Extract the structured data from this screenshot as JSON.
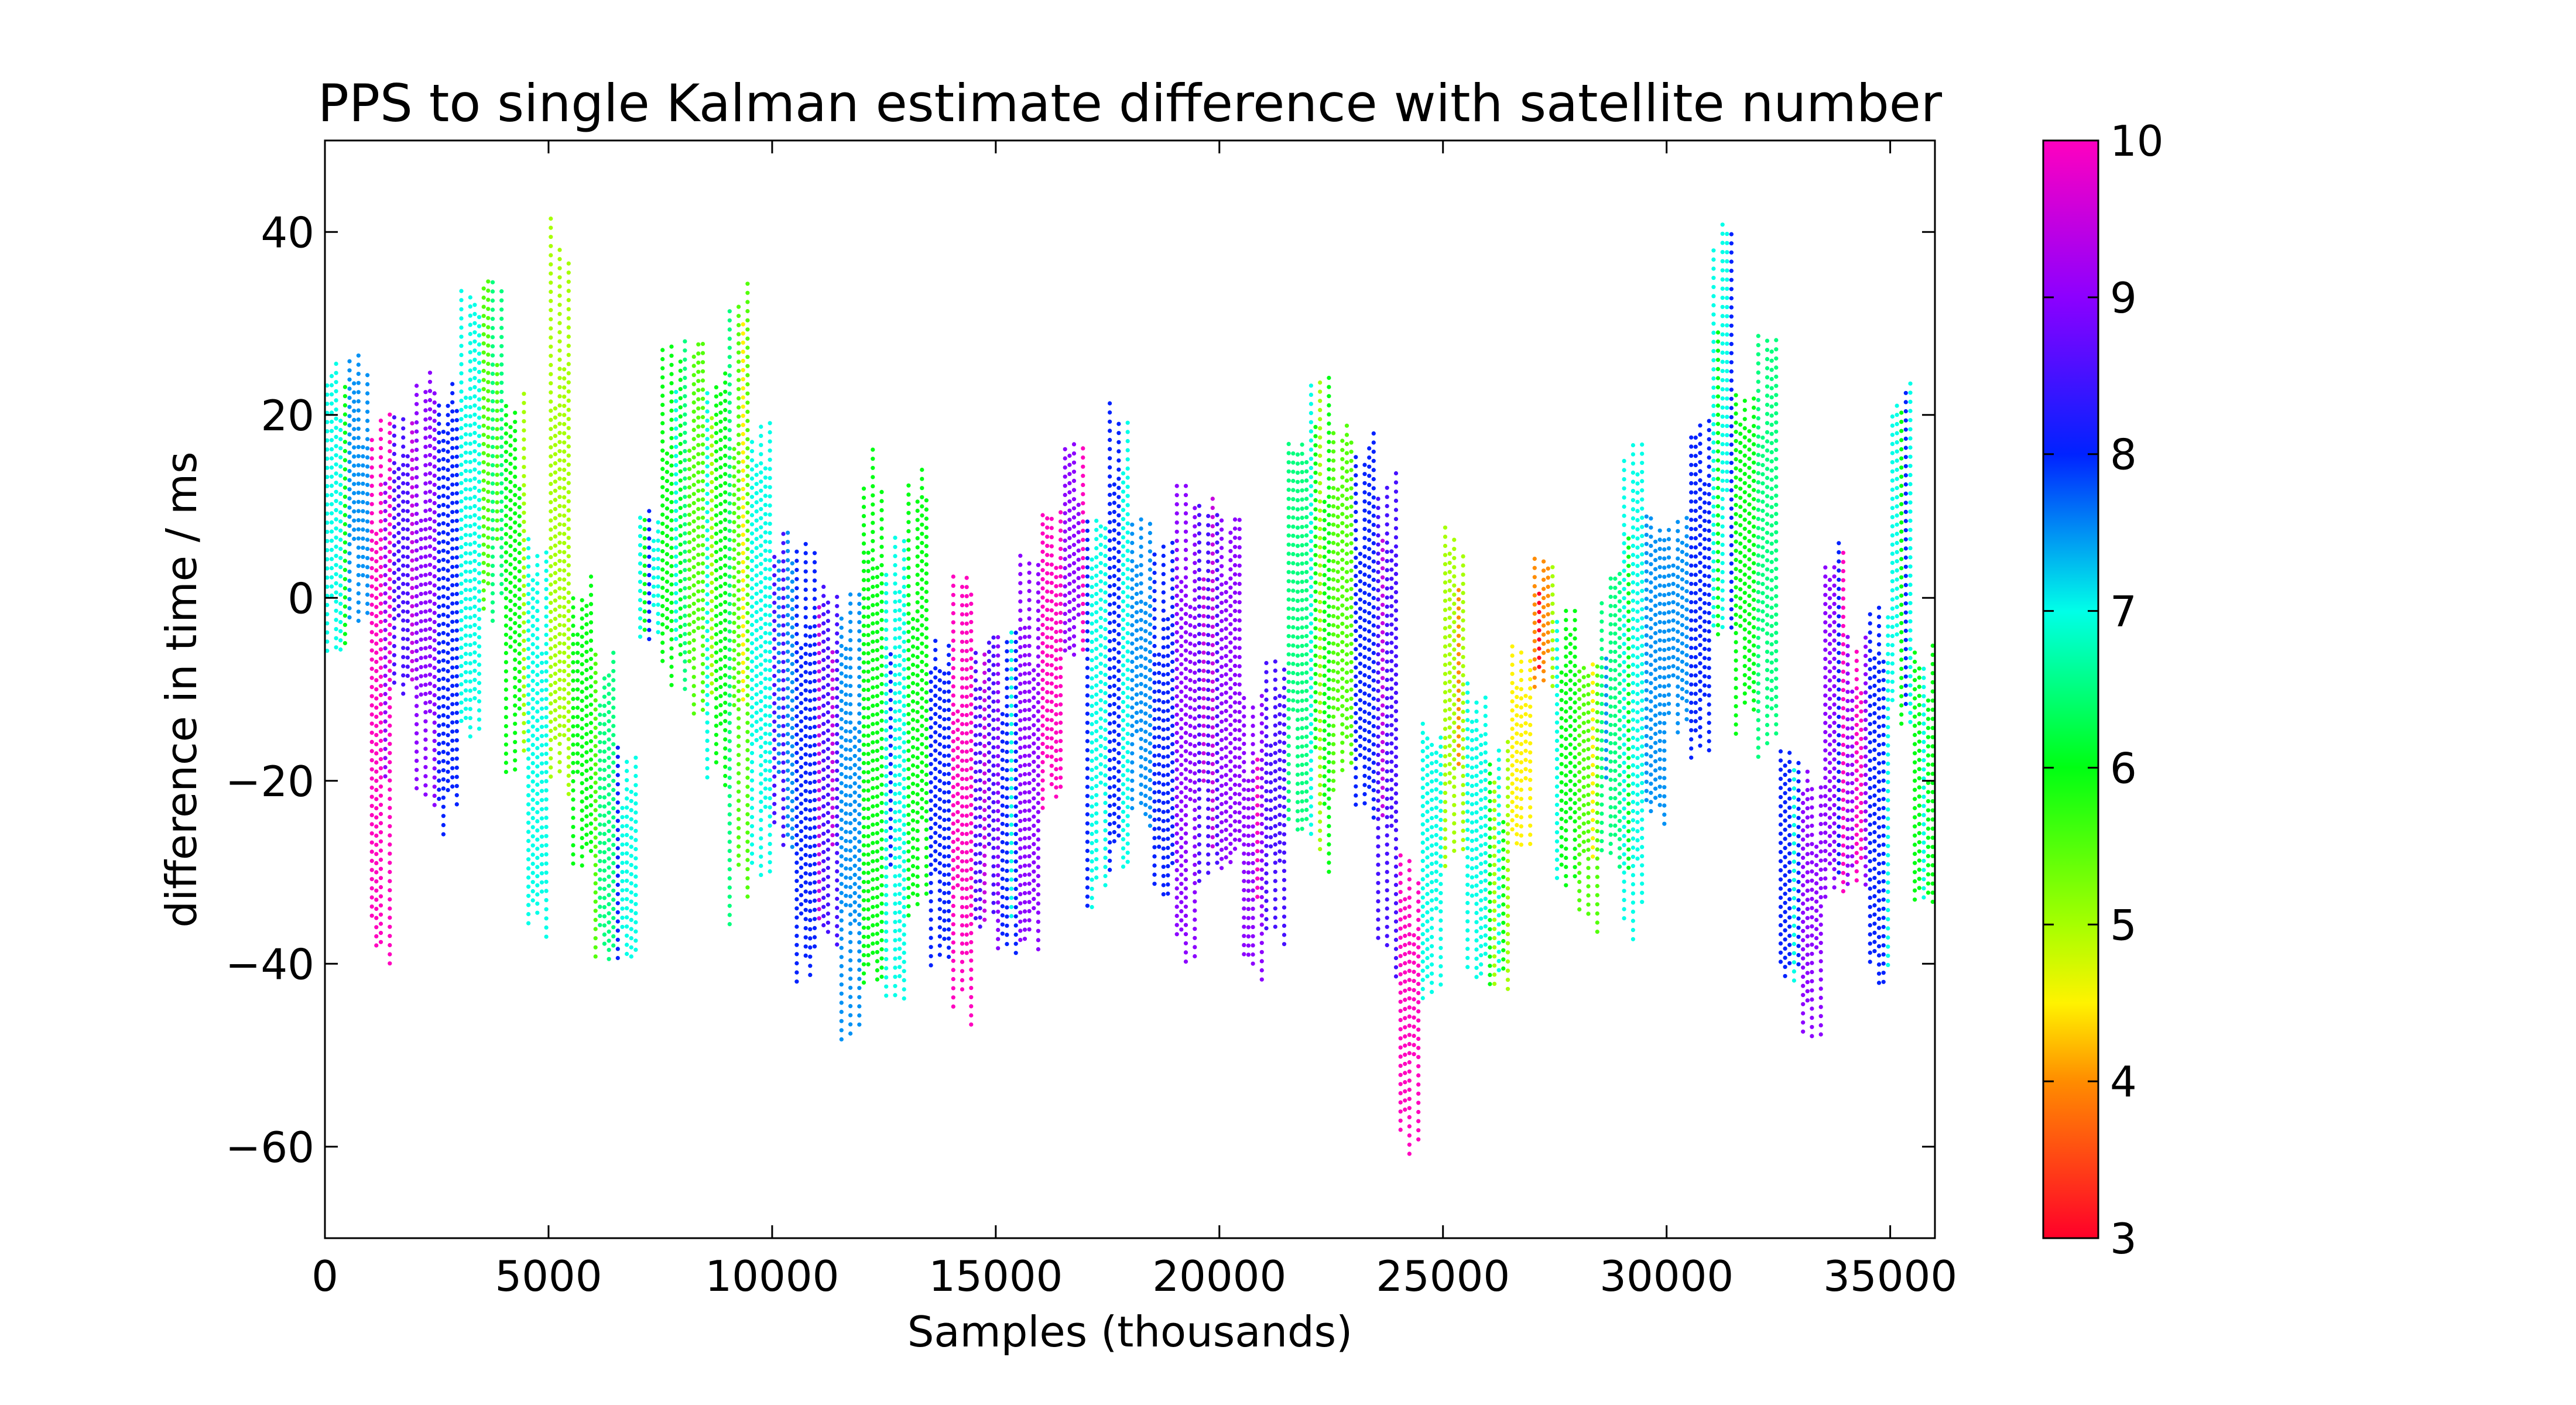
{
  "chart_data": {
    "type": "scatter",
    "title": "PPS to single Kalman estimate difference with satellite number",
    "xlabel": "Samples (thousands)",
    "ylabel": "difference in time / ms",
    "xlim": [
      0,
      36000
    ],
    "ylim": [
      -70,
      50
    ],
    "x_ticks": [
      0,
      5000,
      10000,
      15000,
      20000,
      25000,
      30000,
      35000
    ],
    "x_tick_labels": [
      "0",
      "5000",
      "10000",
      "15000",
      "20000",
      "25000",
      "30000",
      "35000"
    ],
    "y_ticks": [
      -60,
      -40,
      -20,
      0,
      20,
      40
    ],
    "y_tick_labels": [
      "−60",
      "−40",
      "−20",
      "0",
      "20",
      "40"
    ],
    "grid": false,
    "legend": "none",
    "colorbar": {
      "label": "",
      "range": [
        3,
        10
      ],
      "ticks": [
        3,
        4,
        5,
        6,
        7,
        8,
        9,
        10
      ],
      "tick_labels": [
        "3",
        "4",
        "5",
        "6",
        "7",
        "8",
        "9",
        "10"
      ],
      "colormap": "gist_rainbow",
      "stops": [
        {
          "value": 3,
          "color": "#ff0029"
        },
        {
          "value": 4,
          "color": "#ff8c00"
        },
        {
          "value": 4.5,
          "color": "#fff300"
        },
        {
          "value": 5,
          "color": "#a6ff00"
        },
        {
          "value": 6,
          "color": "#00ff13"
        },
        {
          "value": 7,
          "color": "#00ffe8"
        },
        {
          "value": 8,
          "color": "#0022ff"
        },
        {
          "value": 9,
          "color": "#8c00ff"
        },
        {
          "value": 10,
          "color": "#ff00bf"
        }
      ]
    },
    "segments": [
      {
        "x0": 0,
        "x1": 500,
        "sat": 7,
        "lo": -8,
        "hi": 27
      },
      {
        "x0": 500,
        "x1": 1000,
        "sat": 7.5,
        "lo": -3,
        "hi": 28
      },
      {
        "x0": 1000,
        "x1": 1500,
        "sat": 10,
        "lo": -40,
        "hi": 22
      },
      {
        "x0": 1500,
        "x1": 2000,
        "sat": 8.5,
        "lo": -12,
        "hi": 22
      },
      {
        "x0": 2000,
        "x1": 2500,
        "sat": 9,
        "lo": -25,
        "hi": 27
      },
      {
        "x0": 2500,
        "x1": 3000,
        "sat": 8,
        "lo": -26,
        "hi": 24
      },
      {
        "x0": 3000,
        "x1": 3500,
        "sat": 7,
        "lo": -17,
        "hi": 35
      },
      {
        "x0": 3500,
        "x1": 4000,
        "sat": 5.5,
        "lo": -3,
        "hi": 35
      },
      {
        "x0": 4000,
        "x1": 4500,
        "sat": 6,
        "lo": -20,
        "hi": 23
      },
      {
        "x0": 4500,
        "x1": 5000,
        "sat": 7,
        "lo": -39,
        "hi": 10
      },
      {
        "x0": 5000,
        "x1": 5500,
        "sat": 5,
        "lo": -22,
        "hi": 43
      },
      {
        "x0": 5500,
        "x1": 6000,
        "sat": 6,
        "lo": -30,
        "hi": 3
      },
      {
        "x0": 6000,
        "x1": 6500,
        "sat": 6.5,
        "lo": -40,
        "hi": -5
      },
      {
        "x0": 6500,
        "x1": 7000,
        "sat": 7,
        "lo": -41,
        "hi": -15
      },
      {
        "x0": 7000,
        "x1": 7500,
        "sat": 7,
        "lo": -5,
        "hi": 10
      },
      {
        "x0": 7500,
        "x1": 8000,
        "sat": 6,
        "lo": -10,
        "hi": 29
      },
      {
        "x0": 8000,
        "x1": 8500,
        "sat": 5.5,
        "lo": -13,
        "hi": 29
      },
      {
        "x0": 8500,
        "x1": 9000,
        "sat": 6,
        "lo": -22,
        "hi": 27
      },
      {
        "x0": 9000,
        "x1": 9500,
        "sat": 5.5,
        "lo": -36,
        "hi": 38
      },
      {
        "x0": 9500,
        "x1": 10000,
        "sat": 7,
        "lo": -32,
        "hi": 22
      },
      {
        "x0": 10000,
        "x1": 10500,
        "sat": 7.5,
        "lo": -28,
        "hi": 8
      },
      {
        "x0": 10500,
        "x1": 11000,
        "sat": 8,
        "lo": -43,
        "hi": 8
      },
      {
        "x0": 11000,
        "x1": 11500,
        "sat": 8.5,
        "lo": -38,
        "hi": 2
      },
      {
        "x0": 11500,
        "x1": 12000,
        "sat": 7.5,
        "lo": -50,
        "hi": 3
      },
      {
        "x0": 12000,
        "x1": 12500,
        "sat": 6,
        "lo": -44,
        "hi": 18
      },
      {
        "x0": 12500,
        "x1": 13000,
        "sat": 7,
        "lo": -45,
        "hi": 8
      },
      {
        "x0": 13000,
        "x1": 13500,
        "sat": 6,
        "lo": -37,
        "hi": 15
      },
      {
        "x0": 13500,
        "x1": 14000,
        "sat": 8,
        "lo": -42,
        "hi": -4
      },
      {
        "x0": 14000,
        "x1": 14500,
        "sat": 10,
        "lo": -48,
        "hi": 5
      },
      {
        "x0": 14500,
        "x1": 15000,
        "sat": 8.5,
        "lo": -37,
        "hi": -3
      },
      {
        "x0": 15000,
        "x1": 15500,
        "sat": 8,
        "lo": -40,
        "hi": 0
      },
      {
        "x0": 15500,
        "x1": 16000,
        "sat": 9,
        "lo": -41,
        "hi": 8
      },
      {
        "x0": 16000,
        "x1": 16500,
        "sat": 10,
        "lo": -23,
        "hi": 10
      },
      {
        "x0": 16500,
        "x1": 17000,
        "sat": 9,
        "lo": -7,
        "hi": 18
      },
      {
        "x0": 17000,
        "x1": 17500,
        "sat": 7,
        "lo": -34,
        "hi": 10
      },
      {
        "x0": 17500,
        "x1": 18000,
        "sat": 8,
        "lo": -30,
        "hi": 24
      },
      {
        "x0": 18000,
        "x1": 18500,
        "sat": 7.5,
        "lo": -25,
        "hi": 10
      },
      {
        "x0": 18500,
        "x1": 19000,
        "sat": 8,
        "lo": -33,
        "hi": 8
      },
      {
        "x0": 19000,
        "x1": 19500,
        "sat": 9,
        "lo": -40,
        "hi": 15
      },
      {
        "x0": 19500,
        "x1": 20000,
        "sat": 8.5,
        "lo": -32,
        "hi": 14
      },
      {
        "x0": 20000,
        "x1": 20500,
        "sat": 9,
        "lo": -30,
        "hi": 10
      },
      {
        "x0": 20500,
        "x1": 21000,
        "sat": 9,
        "lo": -42,
        "hi": -8
      },
      {
        "x0": 21000,
        "x1": 21500,
        "sat": 8.5,
        "lo": -38,
        "hi": -5
      },
      {
        "x0": 21500,
        "x1": 22000,
        "sat": 6.5,
        "lo": -27,
        "hi": 18
      },
      {
        "x0": 22000,
        "x1": 22500,
        "sat": 6,
        "lo": -30,
        "hi": 28
      },
      {
        "x0": 22500,
        "x1": 23000,
        "sat": 5.5,
        "lo": -22,
        "hi": 20
      },
      {
        "x0": 23000,
        "x1": 23500,
        "sat": 8,
        "lo": -25,
        "hi": 18
      },
      {
        "x0": 23500,
        "x1": 24000,
        "sat": 8.5,
        "lo": -42,
        "hi": 15
      },
      {
        "x0": 24000,
        "x1": 24500,
        "sat": 10,
        "lo": -61,
        "hi": -28
      },
      {
        "x0": 24500,
        "x1": 25000,
        "sat": 7,
        "lo": -44,
        "hi": -12
      },
      {
        "x0": 25000,
        "x1": 25500,
        "sat": 5,
        "lo": -30,
        "hi": 9
      },
      {
        "x0": 25500,
        "x1": 26000,
        "sat": 7,
        "lo": -42,
        "hi": -8
      },
      {
        "x0": 26000,
        "x1": 26500,
        "sat": 6,
        "lo": -43,
        "hi": -15
      },
      {
        "x0": 26500,
        "x1": 27000,
        "sat": 4.5,
        "lo": -27,
        "hi": -5
      },
      {
        "x0": 27000,
        "x1": 27500,
        "sat": 4,
        "lo": -10,
        "hi": 5
      },
      {
        "x0": 27500,
        "x1": 28000,
        "sat": 6,
        "lo": -32,
        "hi": 0
      },
      {
        "x0": 28000,
        "x1": 28500,
        "sat": 5.5,
        "lo": -37,
        "hi": -5
      },
      {
        "x0": 28500,
        "x1": 29000,
        "sat": 6.5,
        "lo": -30,
        "hi": 3
      },
      {
        "x0": 29000,
        "x1": 29500,
        "sat": 7,
        "lo": -38,
        "hi": 18
      },
      {
        "x0": 29500,
        "x1": 30000,
        "sat": 7.5,
        "lo": -25,
        "hi": 10
      },
      {
        "x0": 30000,
        "x1": 30500,
        "sat": 7.5,
        "lo": -15,
        "hi": 10
      },
      {
        "x0": 30500,
        "x1": 31000,
        "sat": 8,
        "lo": -20,
        "hi": 20
      },
      {
        "x0": 31000,
        "x1": 31500,
        "sat": 7,
        "lo": -5,
        "hi": 43
      },
      {
        "x0": 31500,
        "x1": 32000,
        "sat": 6,
        "lo": -15,
        "hi": 25
      },
      {
        "x0": 32000,
        "x1": 32500,
        "sat": 6.5,
        "lo": -20,
        "hi": 32
      },
      {
        "x0": 32500,
        "x1": 33000,
        "sat": 8,
        "lo": -42,
        "hi": -15
      },
      {
        "x0": 33000,
        "x1": 33500,
        "sat": 9,
        "lo": -49,
        "hi": -18
      },
      {
        "x0": 33500,
        "x1": 34000,
        "sat": 9,
        "lo": -35,
        "hi": 7
      },
      {
        "x0": 34000,
        "x1": 34500,
        "sat": 9,
        "lo": -32,
        "hi": -3
      },
      {
        "x0": 34500,
        "x1": 35000,
        "sat": 8,
        "lo": -44,
        "hi": 0
      },
      {
        "x0": 35000,
        "x1": 35500,
        "sat": 7,
        "lo": -15,
        "hi": 24
      },
      {
        "x0": 35500,
        "x1": 36000,
        "sat": 6,
        "lo": -35,
        "hi": -5
      }
    ]
  }
}
